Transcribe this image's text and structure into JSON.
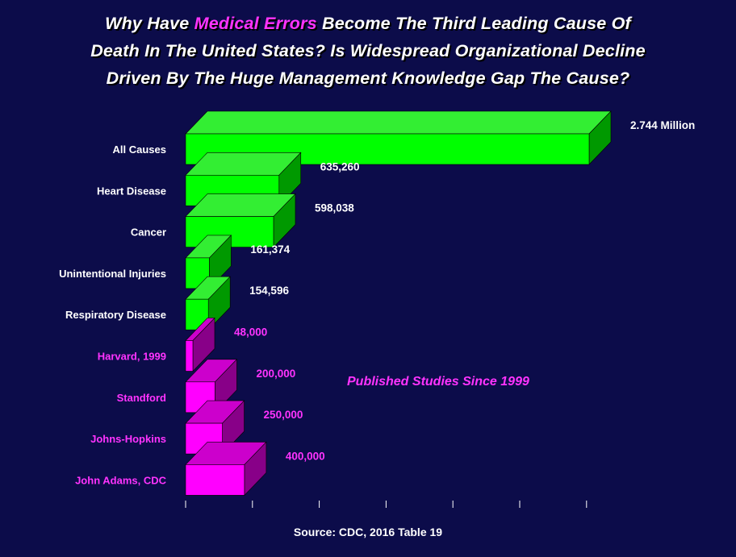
{
  "title": {
    "line1_a": "Why Have ",
    "line1_highlight": "Medical Errors",
    "line1_b": " Become The Third Leading Cause Of",
    "line2": "Death In The United States?  Is Widespread Organizational Decline",
    "line3": "Driven By The Huge Management Knowledge Gap The Cause?"
  },
  "annotation": "Published Studies Since 1999",
  "source": "Source: CDC, 2016 Table 19",
  "colors": {
    "background": "#0c0c4a",
    "cdc_front": "#00ff00",
    "cdc_top": "#33ee33",
    "cdc_side": "#009900",
    "cdc_label": "#ffffff",
    "study_front": "#ff00ff",
    "study_top": "#cc00cc",
    "study_side": "#880088",
    "study_label": "#ff33ff"
  },
  "chart_data": {
    "type": "bar",
    "orientation": "horizontal",
    "style": "3d",
    "categories": [
      "All Causes",
      "Heart Disease",
      "Cancer",
      "Unintentional Injuries",
      "Respiratory Disease",
      "Harvard, 1999",
      "Standford",
      "Johns-Hopkins",
      "John Adams, CDC"
    ],
    "values": [
      2744000,
      635260,
      598038,
      161374,
      154596,
      48000,
      200000,
      250000,
      400000
    ],
    "value_labels": [
      "2.744 Million",
      "635,260",
      "598,038",
      "161,374",
      "154,596",
      "48,000",
      "200,000",
      "250,000",
      "400,000"
    ],
    "groups": [
      "cdc",
      "cdc",
      "cdc",
      "cdc",
      "cdc",
      "study",
      "study",
      "study",
      "study"
    ],
    "xlim": [
      0,
      3000000
    ],
    "x_tick_values": [
      0,
      500000,
      1000000,
      1500000,
      2000000,
      2500000,
      3000000
    ],
    "grid": false
  }
}
